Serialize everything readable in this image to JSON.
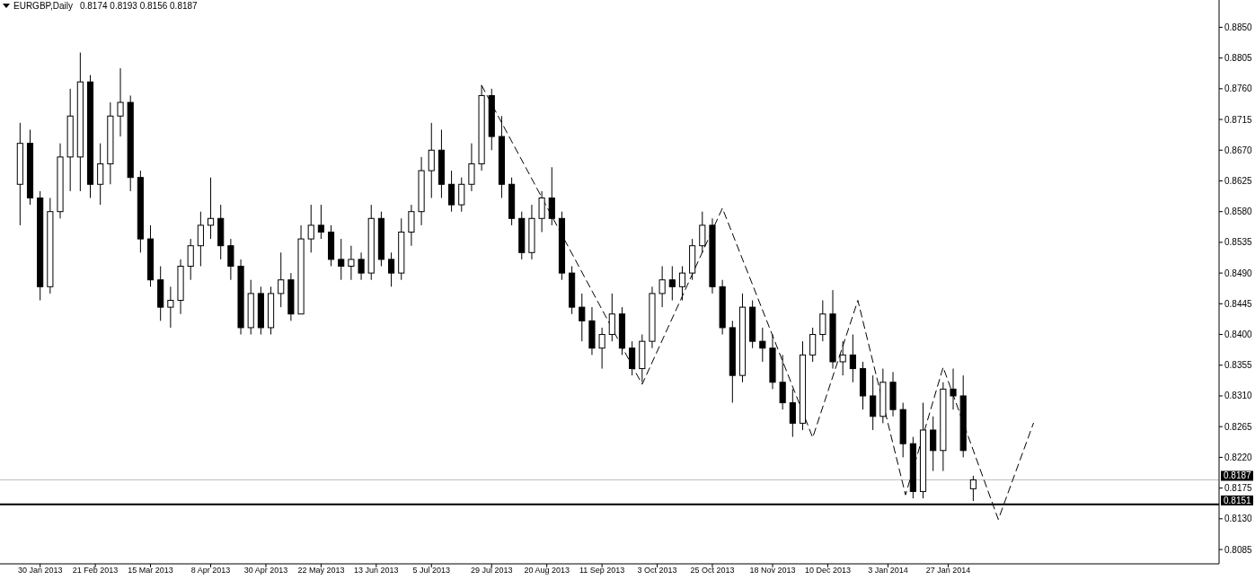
{
  "chart_data": {
    "type": "candlestick",
    "title": "EURGBP,Daily",
    "subtitle": "0.8174 0.8193 0.8156 0.8187",
    "xlim": [
      "2013-01-14",
      "2014-05-15"
    ],
    "ylim": [
      0.8064,
      0.889
    ],
    "xticks": [
      {
        "value": "2013-01-30",
        "label": "30 Jan 2013"
      },
      {
        "value": "2013-02-21",
        "label": "21 Feb 2013"
      },
      {
        "value": "2013-03-15",
        "label": "15 Mar 2013"
      },
      {
        "value": "2013-04-08",
        "label": "8 Apr 2013"
      },
      {
        "value": "2013-04-30",
        "label": "30 Apr 2013"
      },
      {
        "value": "2013-05-22",
        "label": "22 May 2013"
      },
      {
        "value": "2013-06-13",
        "label": "13 Jun 2013"
      },
      {
        "value": "2013-07-05",
        "label": "5 Jul 2013"
      },
      {
        "value": "2013-07-29",
        "label": "29 Jul 2013"
      },
      {
        "value": "2013-08-20",
        "label": "20 Aug 2013"
      },
      {
        "value": "2013-09-11",
        "label": "11 Sep 2013"
      },
      {
        "value": "2013-10-03",
        "label": "3 Oct 2013"
      },
      {
        "value": "2013-10-25",
        "label": "25 Oct 2013"
      },
      {
        "value": "2013-11-18",
        "label": "18 Nov 2013"
      },
      {
        "value": "2013-12-10",
        "label": "10 Dec 2013"
      },
      {
        "value": "2014-01-03",
        "label": "3 Jan 2014"
      },
      {
        "value": "2014-01-27",
        "label": "27 Jan 2014"
      }
    ],
    "yticks": [
      {
        "value": 0.885,
        "label": "0.8850"
      },
      0.8805,
      {
        "value": 0.876,
        "label": "0.8760"
      },
      0.8715,
      {
        "value": 0.867,
        "label": "0.8670"
      },
      0.8625,
      {
        "value": 0.858,
        "label": "0.8580"
      },
      0.8535,
      {
        "value": 0.849,
        "label": "0.8490"
      },
      0.8445,
      {
        "value": 0.84,
        "label": "0.8400"
      },
      0.8355,
      {
        "value": 0.831,
        "label": "0.8310"
      },
      0.8265,
      {
        "value": 0.822,
        "label": "0.8220"
      },
      0.8175,
      {
        "value": 0.813,
        "label": "0.8130"
      },
      0.8085
    ],
    "ref_lines": [
      {
        "axis": "y",
        "value": 0.8187,
        "label": "0.8187",
        "color": "#c0c0c0"
      },
      {
        "axis": "y",
        "value": 0.8151,
        "label": "0.8151",
        "color": "#000000"
      }
    ],
    "series": [
      {
        "type": "line",
        "color": "#000000",
        "line_style": "dashed",
        "x": [
          "2013-07-25",
          "2013-09-27",
          "2013-10-29",
          "2013-12-04",
          "2013-12-22",
          "2014-01-10",
          "2014-01-25",
          "2014-02-16",
          "2014-03-02"
        ],
        "values": [
          0.8765,
          0.8327,
          0.8585,
          0.8249,
          0.845,
          0.8165,
          0.8352,
          0.8129,
          0.827
        ]
      },
      {
        "color": "#000000",
        "x": [
          "2013-01-22",
          "2013-01-26",
          "2013-01-30",
          "2013-02-03",
          "2013-02-07",
          "2013-02-11",
          "2013-02-15",
          "2013-02-19",
          "2013-02-23",
          "2013-02-27",
          "2013-03-03",
          "2013-03-07",
          "2013-03-11",
          "2013-03-15",
          "2013-03-19",
          "2013-03-23",
          "2013-03-27",
          "2013-03-31",
          "2013-04-04",
          "2013-04-08",
          "2013-04-12",
          "2013-04-16",
          "2013-04-20",
          "2013-04-24",
          "2013-04-28",
          "2013-05-02",
          "2013-05-06",
          "2013-05-10",
          "2013-05-14",
          "2013-05-18",
          "2013-05-22",
          "2013-05-26",
          "2013-05-30",
          "2013-06-03",
          "2013-06-07",
          "2013-06-11",
          "2013-06-15",
          "2013-06-19",
          "2013-06-23",
          "2013-06-27",
          "2013-07-01",
          "2013-07-05",
          "2013-07-09",
          "2013-07-13",
          "2013-07-17",
          "2013-07-21",
          "2013-07-25",
          "2013-07-29",
          "2013-08-02",
          "2013-08-06",
          "2013-08-10",
          "2013-08-14",
          "2013-08-18",
          "2013-08-22",
          "2013-08-26",
          "2013-08-30",
          "2013-09-03",
          "2013-09-07",
          "2013-09-11",
          "2013-09-15",
          "2013-09-19",
          "2013-09-23",
          "2013-09-27",
          "2013-10-01",
          "2013-10-05",
          "2013-10-09",
          "2013-10-13",
          "2013-10-17",
          "2013-10-21",
          "2013-10-25",
          "2013-10-29",
          "2013-11-02",
          "2013-11-06",
          "2013-11-10",
          "2013-11-14",
          "2013-11-18",
          "2013-11-22",
          "2013-11-26",
          "2013-11-30",
          "2013-12-04",
          "2013-12-08",
          "2013-12-12",
          "2013-12-16",
          "2013-12-20",
          "2013-12-24",
          "2013-12-28",
          "2014-01-01",
          "2014-01-05",
          "2014-01-09",
          "2014-01-13",
          "2014-01-17",
          "2014-01-21",
          "2014-01-25",
          "2014-01-29",
          "2014-02-02",
          "2014-02-06"
        ],
        "ohlc": [
          [
            0.862,
            0.871,
            0.856,
            0.868
          ],
          [
            0.868,
            0.87,
            0.859,
            0.86
          ],
          [
            0.86,
            0.861,
            0.845,
            0.847
          ],
          [
            0.847,
            0.86,
            0.846,
            0.858
          ],
          [
            0.858,
            0.868,
            0.857,
            0.866
          ],
          [
            0.866,
            0.876,
            0.861,
            0.872
          ],
          [
            0.866,
            0.8813,
            0.861,
            0.877
          ],
          [
            0.877,
            0.878,
            0.86,
            0.862
          ],
          [
            0.862,
            0.868,
            0.859,
            0.865
          ],
          [
            0.865,
            0.874,
            0.862,
            0.872
          ],
          [
            0.872,
            0.879,
            0.869,
            0.874
          ],
          [
            0.874,
            0.875,
            0.861,
            0.863
          ],
          [
            0.863,
            0.864,
            0.852,
            0.854
          ],
          [
            0.854,
            0.856,
            0.847,
            0.848
          ],
          [
            0.848,
            0.85,
            0.842,
            0.844
          ],
          [
            0.844,
            0.847,
            0.841,
            0.845
          ],
          [
            0.845,
            0.851,
            0.843,
            0.85
          ],
          [
            0.85,
            0.854,
            0.848,
            0.853
          ],
          [
            0.853,
            0.858,
            0.85,
            0.856
          ],
          [
            0.856,
            0.863,
            0.854,
            0.857
          ],
          [
            0.857,
            0.859,
            0.851,
            0.853
          ],
          [
            0.853,
            0.854,
            0.848,
            0.85
          ],
          [
            0.85,
            0.851,
            0.84,
            0.841
          ],
          [
            0.841,
            0.848,
            0.84,
            0.846
          ],
          [
            0.846,
            0.847,
            0.84,
            0.841
          ],
          [
            0.841,
            0.847,
            0.84,
            0.846
          ],
          [
            0.846,
            0.852,
            0.844,
            0.848
          ],
          [
            0.848,
            0.849,
            0.842,
            0.843
          ],
          [
            0.843,
            0.856,
            0.843,
            0.854
          ],
          [
            0.854,
            0.859,
            0.852,
            0.856
          ],
          [
            0.856,
            0.859,
            0.854,
            0.855
          ],
          [
            0.855,
            0.856,
            0.85,
            0.851
          ],
          [
            0.851,
            0.854,
            0.848,
            0.85
          ],
          [
            0.85,
            0.853,
            0.848,
            0.851
          ],
          [
            0.851,
            0.852,
            0.848,
            0.849
          ],
          [
            0.849,
            0.859,
            0.848,
            0.857
          ],
          [
            0.857,
            0.858,
            0.85,
            0.851
          ],
          [
            0.851,
            0.852,
            0.847,
            0.849
          ],
          [
            0.849,
            0.857,
            0.848,
            0.855
          ],
          [
            0.855,
            0.859,
            0.853,
            0.858
          ],
          [
            0.858,
            0.866,
            0.856,
            0.864
          ],
          [
            0.864,
            0.871,
            0.86,
            0.867
          ],
          [
            0.867,
            0.87,
            0.86,
            0.862
          ],
          [
            0.862,
            0.864,
            0.858,
            0.859
          ],
          [
            0.859,
            0.863,
            0.858,
            0.862
          ],
          [
            0.862,
            0.868,
            0.861,
            0.865
          ],
          [
            0.865,
            0.8765,
            0.864,
            0.875
          ],
          [
            0.875,
            0.876,
            0.867,
            0.869
          ],
          [
            0.869,
            0.872,
            0.86,
            0.862
          ],
          [
            0.862,
            0.863,
            0.856,
            0.857
          ],
          [
            0.857,
            0.858,
            0.851,
            0.852
          ],
          [
            0.852,
            0.859,
            0.851,
            0.857
          ],
          [
            0.857,
            0.861,
            0.855,
            0.86
          ],
          [
            0.86,
            0.8645,
            0.856,
            0.857
          ],
          [
            0.857,
            0.858,
            0.848,
            0.849
          ],
          [
            0.849,
            0.85,
            0.843,
            0.844
          ],
          [
            0.844,
            0.846,
            0.839,
            0.842
          ],
          [
            0.842,
            0.844,
            0.837,
            0.838
          ],
          [
            0.838,
            0.841,
            0.835,
            0.84
          ],
          [
            0.84,
            0.846,
            0.839,
            0.843
          ],
          [
            0.843,
            0.844,
            0.837,
            0.838
          ],
          [
            0.838,
            0.839,
            0.834,
            0.835
          ],
          [
            0.835,
            0.84,
            0.833,
            0.839
          ],
          [
            0.839,
            0.847,
            0.838,
            0.846
          ],
          [
            0.846,
            0.85,
            0.844,
            0.848
          ],
          [
            0.848,
            0.85,
            0.845,
            0.847
          ],
          [
            0.847,
            0.85,
            0.845,
            0.849
          ],
          [
            0.849,
            0.854,
            0.848,
            0.853
          ],
          [
            0.853,
            0.858,
            0.852,
            0.856
          ],
          [
            0.856,
            0.857,
            0.846,
            0.847
          ],
          [
            0.847,
            0.848,
            0.84,
            0.841
          ],
          [
            0.841,
            0.842,
            0.83,
            0.834
          ],
          [
            0.834,
            0.846,
            0.833,
            0.844
          ],
          [
            0.844,
            0.845,
            0.838,
            0.839
          ],
          [
            0.839,
            0.841,
            0.836,
            0.838
          ],
          [
            0.838,
            0.84,
            0.832,
            0.833
          ],
          [
            0.833,
            0.837,
            0.829,
            0.83
          ],
          [
            0.83,
            0.832,
            0.825,
            0.827
          ],
          [
            0.827,
            0.839,
            0.826,
            0.837
          ],
          [
            0.837,
            0.841,
            0.836,
            0.84
          ],
          [
            0.84,
            0.845,
            0.839,
            0.843
          ],
          [
            0.843,
            0.8465,
            0.835,
            0.836
          ],
          [
            0.836,
            0.839,
            0.834,
            0.837
          ],
          [
            0.837,
            0.84,
            0.833,
            0.835
          ],
          [
            0.835,
            0.836,
            0.829,
            0.831
          ],
          [
            0.831,
            0.834,
            0.826,
            0.828
          ],
          [
            0.828,
            0.835,
            0.827,
            0.833
          ],
          [
            0.833,
            0.8345,
            0.828,
            0.829
          ],
          [
            0.829,
            0.83,
            0.822,
            0.824
          ],
          [
            0.824,
            0.825,
            0.816,
            0.817
          ],
          [
            0.817,
            0.83,
            0.816,
            0.826
          ],
          [
            0.826,
            0.828,
            0.82,
            0.823
          ],
          [
            0.823,
            0.833,
            0.82,
            0.832
          ],
          [
            0.832,
            0.835,
            0.829,
            0.831
          ],
          [
            0.831,
            0.834,
            0.822,
            0.823
          ],
          [
            0.8174,
            0.8193,
            0.8156,
            0.8187
          ]
        ]
      }
    ]
  }
}
